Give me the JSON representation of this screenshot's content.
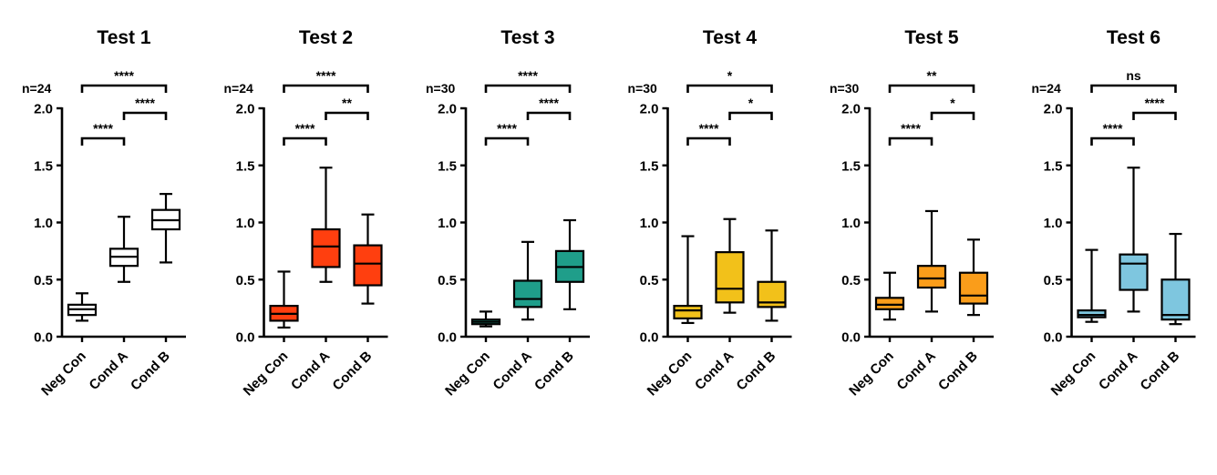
{
  "chart_data": [
    {
      "type": "boxplot",
      "title": "Test 1",
      "n_label": "n=24",
      "categories": [
        "Neg Con",
        "Cond A",
        "Cond B"
      ],
      "ylim": [
        0,
        2.0
      ],
      "yticks": [
        "0.0",
        "0.5",
        "1.0",
        "1.5",
        "2.0"
      ],
      "box_fill": "#ffffff",
      "boxes": [
        {
          "min": 0.14,
          "q1": 0.19,
          "median": 0.24,
          "q3": 0.28,
          "max": 0.38
        },
        {
          "min": 0.48,
          "q1": 0.62,
          "median": 0.7,
          "q3": 0.77,
          "max": 1.05
        },
        {
          "min": 0.65,
          "q1": 0.94,
          "median": 1.02,
          "q3": 1.11,
          "max": 1.25
        }
      ],
      "significance": [
        {
          "from": 0,
          "to": 1,
          "label": "****"
        },
        {
          "from": 1,
          "to": 2,
          "label": "****"
        },
        {
          "from": 0,
          "to": 2,
          "label": "****"
        }
      ]
    },
    {
      "type": "boxplot",
      "title": "Test 2",
      "n_label": "n=24",
      "categories": [
        "Neg Con",
        "Cond A",
        "Cond B"
      ],
      "ylim": [
        0,
        2.0
      ],
      "yticks": [
        "0.0",
        "0.5",
        "1.0",
        "1.5",
        "2.0"
      ],
      "box_fill": "#ff3f0f",
      "boxes": [
        {
          "min": 0.08,
          "q1": 0.14,
          "median": 0.2,
          "q3": 0.27,
          "max": 0.57
        },
        {
          "min": 0.48,
          "q1": 0.61,
          "median": 0.79,
          "q3": 0.94,
          "max": 1.48
        },
        {
          "min": 0.29,
          "q1": 0.45,
          "median": 0.64,
          "q3": 0.8,
          "max": 1.07
        }
      ],
      "significance": [
        {
          "from": 0,
          "to": 1,
          "label": "****"
        },
        {
          "from": 1,
          "to": 2,
          "label": "**"
        },
        {
          "from": 0,
          "to": 2,
          "label": "****"
        }
      ]
    },
    {
      "type": "boxplot",
      "title": "Test 3",
      "n_label": "n=30",
      "categories": [
        "Neg Con",
        "Cond A",
        "Cond B"
      ],
      "ylim": [
        0,
        2.0
      ],
      "yticks": [
        "0.0",
        "0.5",
        "1.0",
        "1.5",
        "2.0"
      ],
      "box_fill": "#1f9e8a",
      "boxes": [
        {
          "min": 0.09,
          "q1": 0.11,
          "median": 0.13,
          "q3": 0.15,
          "max": 0.22
        },
        {
          "min": 0.15,
          "q1": 0.26,
          "median": 0.33,
          "q3": 0.49,
          "max": 0.83
        },
        {
          "min": 0.24,
          "q1": 0.48,
          "median": 0.61,
          "q3": 0.75,
          "max": 1.02
        }
      ],
      "significance": [
        {
          "from": 0,
          "to": 1,
          "label": "****"
        },
        {
          "from": 1,
          "to": 2,
          "label": "****"
        },
        {
          "from": 0,
          "to": 2,
          "label": "****"
        }
      ]
    },
    {
      "type": "boxplot",
      "title": "Test 4",
      "n_label": "n=30",
      "categories": [
        "Neg Con",
        "Cond A",
        "Cond B"
      ],
      "ylim": [
        0,
        2.0
      ],
      "yticks": [
        "0.0",
        "0.5",
        "1.0",
        "1.5",
        "2.0"
      ],
      "box_fill": "#f2c11a",
      "boxes": [
        {
          "min": 0.12,
          "q1": 0.16,
          "median": 0.23,
          "q3": 0.27,
          "max": 0.88
        },
        {
          "min": 0.21,
          "q1": 0.3,
          "median": 0.42,
          "q3": 0.74,
          "max": 1.03
        },
        {
          "min": 0.14,
          "q1": 0.26,
          "median": 0.3,
          "q3": 0.48,
          "max": 0.93
        }
      ],
      "significance": [
        {
          "from": 0,
          "to": 1,
          "label": "****"
        },
        {
          "from": 1,
          "to": 2,
          "label": "*"
        },
        {
          "from": 0,
          "to": 2,
          "label": "*"
        }
      ]
    },
    {
      "type": "boxplot",
      "title": "Test 5",
      "n_label": "n=30",
      "categories": [
        "Neg Con",
        "Cond A",
        "Cond B"
      ],
      "ylim": [
        0,
        2.0
      ],
      "yticks": [
        "0.0",
        "0.5",
        "1.0",
        "1.5",
        "2.0"
      ],
      "box_fill": "#fa9d1a",
      "boxes": [
        {
          "min": 0.15,
          "q1": 0.24,
          "median": 0.28,
          "q3": 0.34,
          "max": 0.56
        },
        {
          "min": 0.22,
          "q1": 0.43,
          "median": 0.51,
          "q3": 0.62,
          "max": 1.1
        },
        {
          "min": 0.19,
          "q1": 0.29,
          "median": 0.36,
          "q3": 0.56,
          "max": 0.85
        }
      ],
      "significance": [
        {
          "from": 0,
          "to": 1,
          "label": "****"
        },
        {
          "from": 1,
          "to": 2,
          "label": "*"
        },
        {
          "from": 0,
          "to": 2,
          "label": "**"
        }
      ]
    },
    {
      "type": "boxplot",
      "title": "Test 6",
      "n_label": "n=24",
      "categories": [
        "Neg Con",
        "Cond A",
        "Cond B"
      ],
      "ylim": [
        0,
        2.0
      ],
      "yticks": [
        "0.0",
        "0.5",
        "1.0",
        "1.5",
        "2.0"
      ],
      "box_fill": "#7ec6df",
      "boxes": [
        {
          "min": 0.13,
          "q1": 0.17,
          "median": 0.19,
          "q3": 0.23,
          "max": 0.76
        },
        {
          "min": 0.22,
          "q1": 0.41,
          "median": 0.64,
          "q3": 0.72,
          "max": 1.48
        },
        {
          "min": 0.11,
          "q1": 0.15,
          "median": 0.19,
          "q3": 0.5,
          "max": 0.9
        }
      ],
      "significance": [
        {
          "from": 0,
          "to": 1,
          "label": "****"
        },
        {
          "from": 1,
          "to": 2,
          "label": "****"
        },
        {
          "from": 0,
          "to": 2,
          "label": "ns"
        }
      ]
    }
  ]
}
